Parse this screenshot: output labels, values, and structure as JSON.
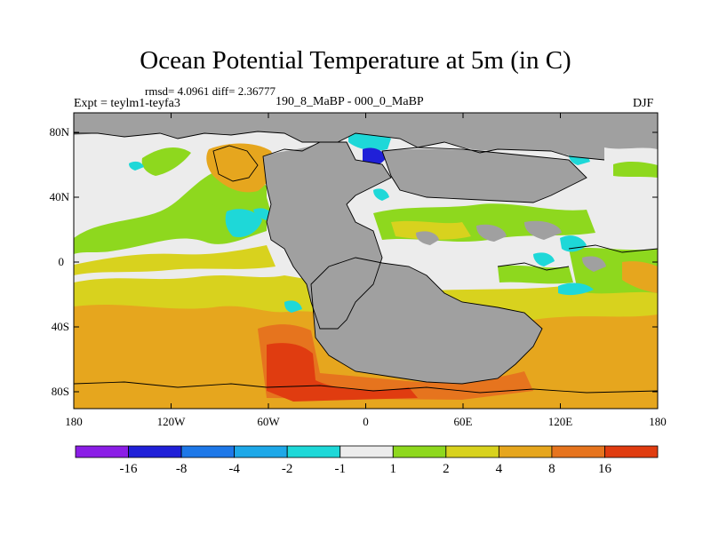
{
  "title": "Ocean Potential Temperature at 5m (in C)",
  "stats": "rmsd= 4.0961 diff= 2.36777",
  "experiment": "Expt = teylm1-teyfa3",
  "comparison": "190_8_MaBP - 000_0_MaBP",
  "season": "DJF",
  "lat_ticks": [
    "80N",
    "40N",
    "0",
    "40S",
    "80S"
  ],
  "lon_ticks": [
    "180",
    "120W",
    "60W",
    "0",
    "60E",
    "120E",
    "180"
  ],
  "colorbar": {
    "colors": [
      "#8b1ee6",
      "#2020d8",
      "#1e78e8",
      "#1ea8e8",
      "#1ed8d8",
      "#ececec",
      "#8ed81e",
      "#d8d21e",
      "#e6a61e",
      "#e6741e",
      "#e03c10"
    ],
    "labels": [
      "-16",
      "-8",
      "-4",
      "-2",
      "-1",
      "1",
      "2",
      "4",
      "8",
      "16"
    ]
  },
  "colors": {
    "land": "#a0a0a0",
    "neutral": "#ececec",
    "green": "#8ed81e",
    "yellow": "#d8d21e",
    "orange": "#e6a61e",
    "dark_orange": "#e6741e",
    "red": "#e03c10",
    "cyan": "#1ed8d8",
    "blue": "#1e78e8",
    "dark_blue": "#2020d8"
  }
}
